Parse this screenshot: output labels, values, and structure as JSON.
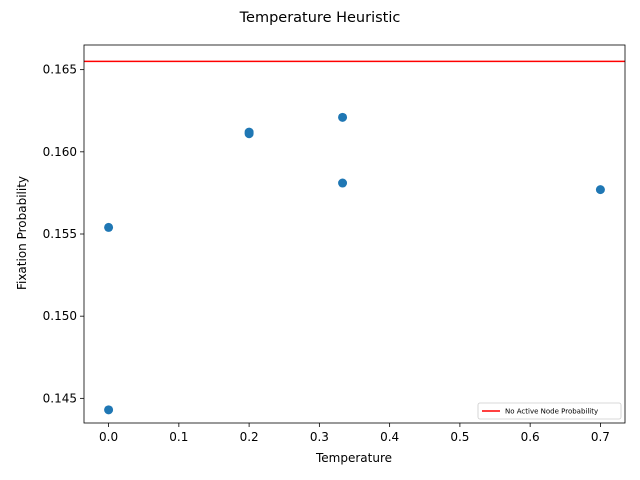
{
  "chart_data": {
    "type": "scatter",
    "title": "Temperature Heuristic",
    "xlabel": "Temperature",
    "ylabel": "Fixation Probability",
    "xlim": [
      -0.035,
      0.735
    ],
    "ylim": [
      0.1435,
      0.1665
    ],
    "xticks": [
      0.0,
      0.1,
      0.2,
      0.3,
      0.4,
      0.5,
      0.6,
      0.7
    ],
    "xtick_labels": [
      "0.0",
      "0.1",
      "0.2",
      "0.3",
      "0.4",
      "0.5",
      "0.6",
      "0.7"
    ],
    "yticks": [
      0.145,
      0.15,
      0.155,
      0.16,
      0.165
    ],
    "ytick_labels": [
      "0.145",
      "0.150",
      "0.155",
      "0.160",
      "0.165"
    ],
    "grid": false,
    "series": [
      {
        "name": "points",
        "color": "#1f77b4",
        "x": [
          0.0,
          0.0,
          0.2,
          0.2,
          0.333,
          0.333,
          0.7
        ],
        "y": [
          0.1554,
          0.1443,
          0.1611,
          0.1612,
          0.1621,
          0.1581,
          0.1577
        ]
      }
    ],
    "hlines": [
      {
        "label": "No Active Node Probability",
        "y": 0.1655,
        "color": "#ff0000"
      }
    ],
    "legend": {
      "position": "lower-right",
      "entries": [
        "No Active Node Probability"
      ]
    }
  }
}
